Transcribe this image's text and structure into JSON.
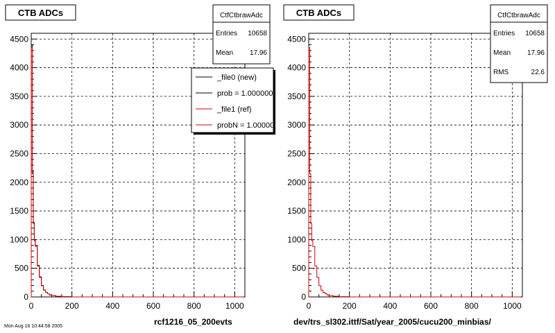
{
  "footer_left": "Mon Aug 16 10:44:58 2005",
  "chart_data": [
    {
      "type": "histogram",
      "title": "CTB ADCs",
      "xlabel": "rcf1216_05_200evts",
      "xlim": [
        0,
        1050
      ],
      "ylim": [
        0,
        4600
      ],
      "x_ticks": [
        0,
        200,
        400,
        600,
        800,
        1000
      ],
      "y_ticks": [
        0,
        500,
        1000,
        1500,
        2000,
        2500,
        3000,
        3500,
        4000,
        4500
      ],
      "grid": true,
      "stats": {
        "name": "CtfCtbrawAdc",
        "rows": [
          {
            "label": "Entries",
            "value": "10658"
          },
          {
            "label": "Mean",
            "value": "17.96"
          }
        ]
      },
      "legend": {
        "placement": "top-right",
        "entries": [
          {
            "label": "_file0 (new)",
            "color": "#000000"
          },
          {
            "label": "prob = 1.000000",
            "color": "#000000"
          },
          {
            "label": "_file1 (ref)",
            "color": "#cc0000"
          },
          {
            "label": "probN = 1.000000",
            "color": "#cc0000"
          }
        ]
      },
      "series": [
        {
          "color": "#000000",
          "bins": [
            [
              0,
              5,
              4400
            ],
            [
              5,
              10,
              2200
            ],
            [
              10,
              15,
              1300
            ],
            [
              15,
              20,
              1000
            ],
            [
              20,
              30,
              900
            ],
            [
              30,
              40,
              550
            ],
            [
              40,
              50,
              350
            ],
            [
              50,
              60,
              200
            ],
            [
              60,
              70,
              120
            ],
            [
              70,
              80,
              80
            ],
            [
              80,
              90,
              55
            ],
            [
              90,
              100,
              35
            ],
            [
              100,
              120,
              25
            ],
            [
              120,
              150,
              12
            ],
            [
              150,
              200,
              5
            ],
            [
              200,
              1040,
              0
            ]
          ]
        },
        {
          "color": "#cc0000",
          "bins": [
            [
              0,
              5,
              4350
            ],
            [
              5,
              10,
              2150
            ],
            [
              10,
              15,
              1280
            ],
            [
              15,
              20,
              980
            ],
            [
              20,
              30,
              880
            ],
            [
              30,
              40,
              540
            ],
            [
              40,
              50,
              340
            ],
            [
              50,
              60,
              195
            ],
            [
              60,
              70,
              118
            ],
            [
              70,
              80,
              78
            ],
            [
              80,
              90,
              54
            ],
            [
              90,
              100,
              34
            ],
            [
              100,
              120,
              24
            ],
            [
              120,
              150,
              12
            ],
            [
              150,
              200,
              5
            ],
            [
              200,
              1040,
              0
            ]
          ]
        }
      ]
    },
    {
      "type": "histogram",
      "title": "CTB ADCs",
      "xlabel": "dev/trs_sl302.ittf/Sat/year_2005/cucu200_minbias/",
      "xlim": [
        0,
        1050
      ],
      "ylim": [
        0,
        4600
      ],
      "x_ticks": [
        0,
        200,
        400,
        600,
        800,
        1000
      ],
      "y_ticks": [
        0,
        500,
        1000,
        1500,
        2000,
        2500,
        3000,
        3500,
        4000,
        4500
      ],
      "grid": true,
      "stats": {
        "name": "CtfCtbrawAdc",
        "rows": [
          {
            "label": "Entries",
            "value": "10658"
          },
          {
            "label": "Mean",
            "value": "17.96"
          },
          {
            "label": "RMS",
            "value": "22.6"
          }
        ]
      },
      "series": [
        {
          "color": "#cc0000",
          "bins": [
            [
              0,
              5,
              4350
            ],
            [
              5,
              10,
              2150
            ],
            [
              10,
              15,
              1280
            ],
            [
              15,
              20,
              980
            ],
            [
              20,
              30,
              880
            ],
            [
              30,
              40,
              540
            ],
            [
              40,
              50,
              340
            ],
            [
              50,
              60,
              195
            ],
            [
              60,
              70,
              118
            ],
            [
              70,
              80,
              78
            ],
            [
              80,
              90,
              54
            ],
            [
              90,
              100,
              34
            ],
            [
              100,
              120,
              24
            ],
            [
              120,
              150,
              12
            ],
            [
              150,
              200,
              5
            ],
            [
              200,
              1040,
              0
            ]
          ]
        }
      ]
    }
  ]
}
